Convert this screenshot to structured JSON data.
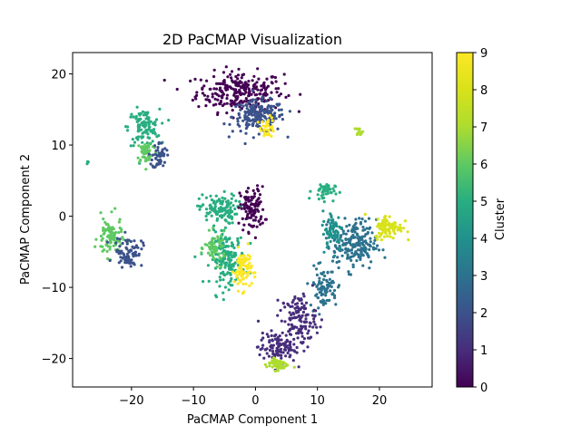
{
  "chart_data": {
    "type": "scatter",
    "title": "2D PaCMAP Visualization",
    "xlabel": "PaCMAP Component 1",
    "ylabel": "PaCMAP Component 2",
    "xlim": [
      -29.5,
      28.5
    ],
    "ylim": [
      -24,
      23
    ],
    "xticks": [
      -20,
      -10,
      0,
      10,
      20
    ],
    "yticks": [
      -20,
      -10,
      0,
      10,
      20
    ],
    "xtick_labels": [
      "−20",
      "−10",
      "0",
      "10",
      "20"
    ],
    "ytick_labels": [
      "−20",
      "−10",
      "0",
      "10",
      "20"
    ],
    "grid": false,
    "colormap": "viridis",
    "colorbar": {
      "label": "Cluster",
      "range": [
        0,
        9
      ],
      "ticks": [
        0,
        1,
        2,
        3,
        4,
        5,
        6,
        7,
        8,
        9
      ],
      "tick_labels": [
        "0",
        "1",
        "2",
        "3",
        "4",
        "5",
        "6",
        "7",
        "8",
        "9"
      ]
    },
    "regions": [
      {
        "cluster": 0,
        "cx": -2.5,
        "cy": 17.5,
        "sx": 5.0,
        "sy": 2.0,
        "n": 260
      },
      {
        "cluster": 2,
        "cx": 0.5,
        "cy": 14.0,
        "sx": 3.0,
        "sy": 1.6,
        "n": 200
      },
      {
        "cluster": 9,
        "cx": 2.0,
        "cy": 12.5,
        "sx": 0.8,
        "sy": 1.0,
        "n": 35
      },
      {
        "cluster": 5,
        "cx": -18.0,
        "cy": 12.5,
        "sx": 1.8,
        "sy": 1.8,
        "n": 110
      },
      {
        "cluster": 6,
        "cx": -17.5,
        "cy": 9.0,
        "sx": 1.2,
        "sy": 1.2,
        "n": 60
      },
      {
        "cluster": 2,
        "cx": -15.5,
        "cy": 8.5,
        "sx": 0.8,
        "sy": 1.4,
        "n": 50
      },
      {
        "cluster": 7,
        "cx": 16.8,
        "cy": 12.0,
        "sx": 0.4,
        "sy": 0.4,
        "n": 14
      },
      {
        "cluster": 5,
        "cx": -27.0,
        "cy": 7.5,
        "sx": 0.2,
        "sy": 0.2,
        "n": 3
      },
      {
        "cluster": 5,
        "cx": -6.0,
        "cy": 1.0,
        "sx": 2.2,
        "sy": 1.5,
        "n": 120
      },
      {
        "cluster": 0,
        "cx": -0.5,
        "cy": 1.0,
        "sx": 1.4,
        "sy": 2.2,
        "n": 110
      },
      {
        "cluster": 5,
        "cx": -4.5,
        "cy": -6.0,
        "sx": 2.0,
        "sy": 2.6,
        "n": 180
      },
      {
        "cluster": 9,
        "cx": -2.0,
        "cy": -7.5,
        "sx": 1.0,
        "sy": 2.0,
        "n": 90
      },
      {
        "cluster": 6,
        "cx": -6.5,
        "cy": -4.5,
        "sx": 1.2,
        "sy": 1.5,
        "n": 60
      },
      {
        "cluster": 6,
        "cx": -23.5,
        "cy": -3.0,
        "sx": 1.4,
        "sy": 2.0,
        "n": 90
      },
      {
        "cluster": 2,
        "cx": -20.5,
        "cy": -5.0,
        "sx": 1.6,
        "sy": 1.5,
        "n": 80
      },
      {
        "cluster": 5,
        "cx": 11.0,
        "cy": 3.5,
        "sx": 1.3,
        "sy": 0.9,
        "n": 45
      },
      {
        "cluster": 3,
        "cx": 16.0,
        "cy": -4.0,
        "sx": 2.5,
        "sy": 2.5,
        "n": 200
      },
      {
        "cluster": 4,
        "cx": 12.5,
        "cy": -2.0,
        "sx": 1.2,
        "sy": 2.0,
        "n": 70
      },
      {
        "cluster": 8,
        "cx": 21.5,
        "cy": -1.5,
        "sx": 1.6,
        "sy": 1.2,
        "n": 90
      },
      {
        "cluster": 3,
        "cx": 11.0,
        "cy": -10.0,
        "sx": 1.6,
        "sy": 2.0,
        "n": 90
      },
      {
        "cluster": 1,
        "cx": 7.0,
        "cy": -14.5,
        "sx": 2.0,
        "sy": 2.5,
        "n": 130
      },
      {
        "cluster": 1,
        "cx": 3.5,
        "cy": -18.5,
        "sx": 2.2,
        "sy": 1.5,
        "n": 110
      },
      {
        "cluster": 7,
        "cx": 3.5,
        "cy": -20.8,
        "sx": 1.2,
        "sy": 0.6,
        "n": 55
      }
    ]
  }
}
